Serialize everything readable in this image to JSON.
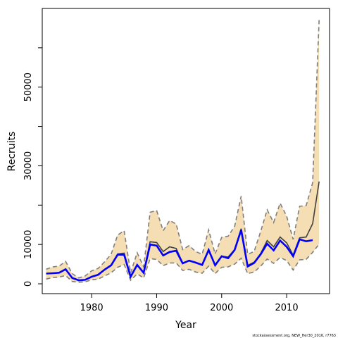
{
  "chart_data": {
    "type": "line",
    "title": "",
    "xlabel": "Year",
    "ylabel": "Recruits",
    "xlim": [
      1972.4,
      1976.0
    ],
    "ylim": [
      -2500,
      70000
    ],
    "x_ticks": [
      1980,
      1990,
      2000,
      2010
    ],
    "x_tick_labels": [
      "1980",
      "1990",
      "2000",
      "2010"
    ],
    "y_ticks": [
      0,
      10000,
      20000,
      30000,
      40000,
      50000,
      60000
    ],
    "y_tick_labels": [
      "0",
      "10000",
      "",
      "30000",
      "",
      "50000",
      ""
    ],
    "grid": false,
    "legend": "none",
    "x": [
      1973,
      1974,
      1975,
      1976,
      1977,
      1978,
      1979,
      1980,
      1981,
      1982,
      1983,
      1984,
      1985,
      1986,
      1987,
      1988,
      1989,
      1990,
      1991,
      1992,
      1993,
      1994,
      1995,
      1996,
      1997,
      1998,
      1999,
      2000,
      2001,
      2002,
      2003,
      2004,
      2005,
      2006,
      2007,
      2008,
      2009,
      2010,
      2011,
      2012,
      2013,
      2014,
      2015
    ],
    "series": [
      {
        "role": "upper-bound",
        "values": [
          3700,
          4300,
          4500,
          5700,
          2600,
          1500,
          2000,
          3300,
          3900,
          5600,
          7500,
          12400,
          13500,
          2800,
          7900,
          4300,
          18200,
          18600,
          13500,
          16100,
          15200,
          8700,
          9700,
          8200,
          7500,
          13700,
          7600,
          11800,
          12100,
          14600,
          22300,
          7500,
          8200,
          13300,
          18800,
          15600,
          20500,
          17200,
          11300,
          19700,
          19900,
          25700,
          67200
        ]
      },
      {
        "role": "lower-bound",
        "values": [
          1200,
          1600,
          1700,
          2100,
          600,
          400,
          500,
          1000,
          1200,
          2000,
          2800,
          4200,
          4900,
          900,
          2500,
          1500,
          6400,
          6200,
          4600,
          5300,
          5300,
          3400,
          3700,
          3000,
          2700,
          4500,
          2600,
          4200,
          4300,
          5000,
          6500,
          2600,
          3000,
          4500,
          6300,
          5200,
          6700,
          5900,
          3500,
          6100,
          6200,
          8000,
          10100
        ]
      },
      {
        "role": "estimate-dark",
        "values": [
          2600,
          2700,
          2900,
          3800,
          1500,
          900,
          1000,
          1800,
          2400,
          3700,
          4800,
          7600,
          7800,
          1800,
          4900,
          2900,
          10700,
          10500,
          8200,
          9400,
          9000,
          5300,
          5900,
          5300,
          4800,
          8800,
          4800,
          7000,
          6800,
          8700,
          14000,
          4700,
          5500,
          7700,
          11000,
          9400,
          11900,
          10400,
          7300,
          11700,
          11900,
          15300,
          26000
        ]
      },
      {
        "role": "estimate-blue",
        "values": [
          2600,
          2700,
          2800,
          3700,
          1500,
          900,
          1000,
          1800,
          2300,
          3600,
          4700,
          7400,
          7400,
          1800,
          4800,
          2800,
          10000,
          9700,
          7200,
          8100,
          8400,
          5200,
          5900,
          5400,
          4800,
          8600,
          4700,
          7000,
          6500,
          8600,
          13700,
          4400,
          5300,
          7500,
          10200,
          8500,
          11000,
          9400,
          7000,
          11300,
          10800,
          11100,
          null
        ]
      }
    ],
    "footnote": "stockassessment.org, NEW_Her30_2016, r7763",
    "colors": {
      "band_fill": "#f5deb3",
      "band_edge": "#7f7f7f",
      "estimate_dark": "#404040",
      "estimate_blue": "#0000ff",
      "axis": "#000000"
    }
  }
}
